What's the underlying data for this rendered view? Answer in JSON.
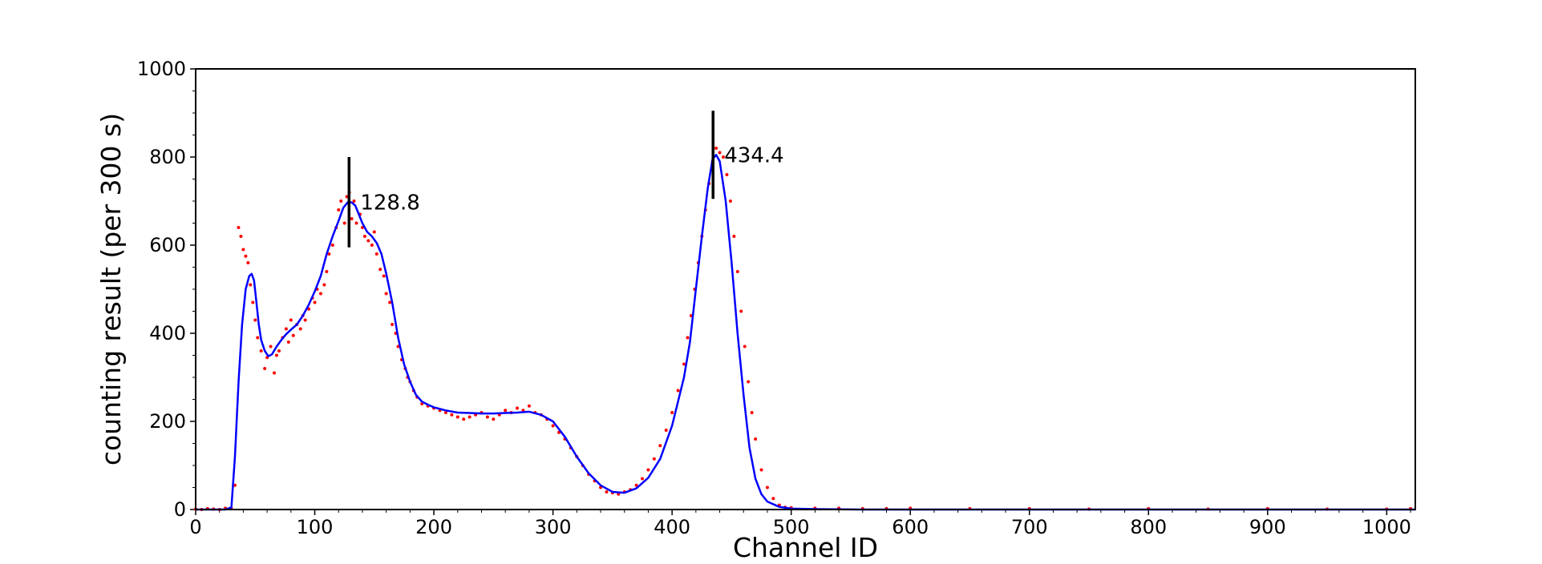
{
  "chart_data": {
    "type": "scatter",
    "title": "",
    "xlabel": "Channel ID",
    "ylabel": "counting result (per 300 s)",
    "xlim": [
      0,
      1024
    ],
    "ylim": [
      0,
      1000
    ],
    "x_ticks": [
      0,
      100,
      200,
      300,
      400,
      500,
      600,
      700,
      800,
      900,
      1000
    ],
    "y_ticks": [
      0,
      200,
      400,
      600,
      800,
      1000
    ],
    "grid": false,
    "legend": "none",
    "series": [
      {
        "kind": "scatter",
        "color": "#ff0000",
        "x": [
          0,
          5,
          10,
          15,
          20,
          25,
          30,
          33,
          36,
          38,
          40,
          42,
          44,
          46,
          48,
          50,
          52,
          55,
          58,
          60,
          63,
          66,
          68,
          70,
          73,
          76,
          78,
          80,
          82,
          85,
          88,
          90,
          92,
          95,
          98,
          100,
          102,
          105,
          108,
          110,
          112,
          115,
          118,
          120,
          122,
          125,
          127,
          129,
          131,
          133,
          135,
          138,
          140,
          142,
          145,
          148,
          150,
          152,
          155,
          158,
          160,
          163,
          165,
          168,
          170,
          173,
          176,
          178,
          180,
          183,
          186,
          190,
          195,
          200,
          205,
          210,
          215,
          220,
          225,
          230,
          235,
          240,
          245,
          250,
          255,
          260,
          265,
          270,
          275,
          280,
          285,
          290,
          295,
          300,
          305,
          310,
          315,
          320,
          325,
          330,
          335,
          340,
          345,
          350,
          355,
          360,
          365,
          370,
          375,
          380,
          385,
          390,
          395,
          400,
          405,
          410,
          413,
          416,
          419,
          422,
          425,
          428,
          431,
          434,
          437,
          440,
          443,
          446,
          449,
          452,
          455,
          458,
          461,
          464,
          467,
          470,
          475,
          480,
          485,
          490,
          495,
          500,
          520,
          540,
          560,
          580,
          600,
          650,
          700,
          750,
          800,
          850,
          900,
          950,
          1000,
          1020
        ],
        "y": [
          1,
          0,
          2,
          1,
          0,
          3,
          2,
          55,
          640,
          620,
          590,
          575,
          560,
          510,
          470,
          430,
          390,
          360,
          320,
          345,
          370,
          310,
          350,
          360,
          390,
          410,
          380,
          430,
          395,
          420,
          410,
          440,
          430,
          455,
          480,
          470,
          500,
          490,
          510,
          540,
          580,
          600,
          640,
          680,
          700,
          650,
          710,
          720,
          660,
          700,
          650,
          670,
          640,
          620,
          610,
          600,
          630,
          580,
          545,
          530,
          490,
          470,
          420,
          400,
          370,
          340,
          320,
          300,
          290,
          270,
          255,
          240,
          235,
          230,
          225,
          220,
          215,
          210,
          205,
          210,
          215,
          220,
          210,
          205,
          215,
          225,
          220,
          230,
          225,
          235,
          220,
          215,
          205,
          190,
          175,
          160,
          140,
          120,
          100,
          80,
          65,
          50,
          40,
          38,
          35,
          40,
          45,
          55,
          70,
          90,
          115,
          145,
          180,
          220,
          270,
          330,
          390,
          440,
          500,
          560,
          620,
          680,
          740,
          790,
          820,
          810,
          800,
          760,
          700,
          620,
          540,
          450,
          370,
          290,
          220,
          160,
          90,
          50,
          25,
          10,
          5,
          4,
          3,
          3,
          2,
          2,
          3,
          2,
          2,
          1,
          2,
          1,
          2,
          1,
          1,
          2
        ]
      },
      {
        "kind": "line",
        "color": "#0000ff",
        "x": [
          0,
          25,
          30,
          33,
          36,
          39,
          42,
          45,
          47,
          49,
          51,
          53,
          55,
          58,
          61,
          64,
          68,
          72,
          76,
          80,
          85,
          90,
          95,
          100,
          105,
          110,
          115,
          120,
          124,
          128,
          131,
          134,
          137,
          140,
          144,
          148,
          152,
          156,
          160,
          165,
          170,
          175,
          180,
          185,
          190,
          195,
          200,
          210,
          220,
          230,
          240,
          250,
          260,
          270,
          280,
          290,
          300,
          310,
          320,
          330,
          340,
          350,
          360,
          370,
          380,
          390,
          400,
          410,
          415,
          420,
          425,
          430,
          434,
          437,
          440,
          445,
          450,
          455,
          460,
          465,
          470,
          475,
          480,
          490,
          500,
          520,
          560,
          600,
          700,
          800,
          900,
          1024
        ],
        "y": [
          0,
          0,
          5,
          120,
          290,
          420,
          500,
          530,
          535,
          520,
          470,
          420,
          385,
          360,
          348,
          352,
          370,
          385,
          398,
          408,
          420,
          440,
          465,
          495,
          530,
          580,
          620,
          655,
          685,
          698,
          697,
          690,
          670,
          650,
          630,
          620,
          605,
          580,
          535,
          470,
          390,
          330,
          290,
          260,
          245,
          238,
          232,
          225,
          220,
          219,
          218,
          218,
          219,
          220,
          222,
          215,
          200,
          165,
          120,
          82,
          55,
          40,
          38,
          48,
          72,
          115,
          190,
          300,
          380,
          500,
          620,
          730,
          795,
          805,
          790,
          700,
          560,
          400,
          260,
          140,
          70,
          35,
          18,
          6,
          2,
          1,
          0,
          0,
          0,
          0,
          0,
          0
        ]
      }
    ],
    "annotations": [
      {
        "text": "128.8",
        "x": 128.8,
        "y_from": 595,
        "y_to": 800
      },
      {
        "text": "434.4",
        "x": 434.4,
        "y_from": 705,
        "y_to": 905
      }
    ]
  }
}
